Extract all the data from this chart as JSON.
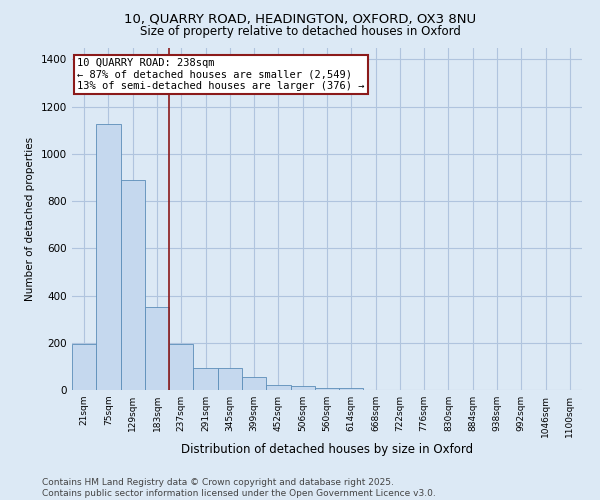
{
  "title_line1": "10, QUARRY ROAD, HEADINGTON, OXFORD, OX3 8NU",
  "title_line2": "Size of property relative to detached houses in Oxford",
  "xlabel": "Distribution of detached houses by size in Oxford",
  "ylabel": "Number of detached properties",
  "categories": [
    "21sqm",
    "75sqm",
    "129sqm",
    "183sqm",
    "237sqm",
    "291sqm",
    "345sqm",
    "399sqm",
    "452sqm",
    "506sqm",
    "560sqm",
    "614sqm",
    "668sqm",
    "722sqm",
    "776sqm",
    "830sqm",
    "884sqm",
    "938sqm",
    "992sqm",
    "1046sqm",
    "1100sqm"
  ],
  "values": [
    195,
    1125,
    890,
    350,
    195,
    95,
    95,
    55,
    20,
    15,
    10,
    10,
    0,
    0,
    0,
    0,
    0,
    0,
    0,
    0,
    0
  ],
  "bar_color": "#c5d8ee",
  "bar_edge_color": "#5b8db8",
  "vline_color": "#8b1a1a",
  "annotation_text": "10 QUARRY ROAD: 238sqm\n← 87% of detached houses are smaller (2,549)\n13% of semi-detached houses are larger (376) →",
  "annotation_box_color": "#8b1a1a",
  "annotation_fontsize": 7.5,
  "background_color": "#dce9f5",
  "plot_bg_color": "#dce9f5",
  "grid_color": "#b0c4de",
  "ylim": [
    0,
    1450
  ],
  "yticks": [
    0,
    200,
    400,
    600,
    800,
    1000,
    1200,
    1400
  ],
  "footer_line1": "Contains HM Land Registry data © Crown copyright and database right 2025.",
  "footer_line2": "Contains public sector information licensed under the Open Government Licence v3.0.",
  "footer_fontsize": 6.5
}
